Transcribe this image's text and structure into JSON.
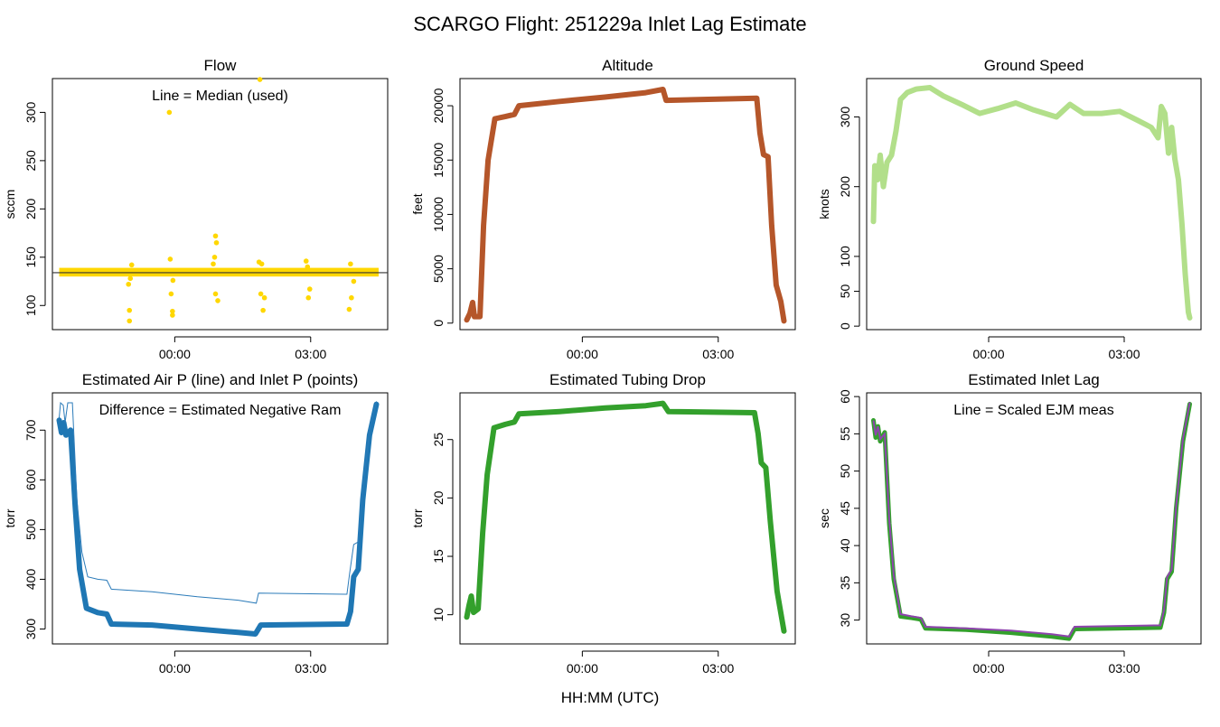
{
  "figure": {
    "title": "SCARGO Flight: 251229a  Inlet Lag Estimate",
    "xlabel": "HH:MM (UTC)"
  },
  "chart_data": [
    {
      "id": "flow",
      "type": "scatter",
      "title": "Flow",
      "ylabel": "sccm",
      "annotation": "Line = Median (used)",
      "color": "#FFD700",
      "xticks": [
        {
          "t": 0,
          "label": "00:00"
        },
        {
          "t": 3,
          "label": "03:00"
        }
      ],
      "yticks": [
        100,
        150,
        200,
        250,
        300
      ],
      "ylim": [
        75,
        335
      ],
      "xlim": [
        -2.7,
        4.7
      ],
      "reference_line": {
        "value": 134,
        "color": "#333333"
      },
      "band": {
        "x0": -2.55,
        "x1": 4.5,
        "low": 130,
        "high": 139
      },
      "outliers": [
        {
          "t": -1.0,
          "v": 84
        },
        {
          "t": -1.0,
          "v": 95
        },
        {
          "t": -1.02,
          "v": 122
        },
        {
          "t": -0.98,
          "v": 128
        },
        {
          "t": -0.95,
          "v": 142
        },
        {
          "t": -0.12,
          "v": 300
        },
        {
          "t": -0.05,
          "v": 90
        },
        {
          "t": -0.05,
          "v": 94
        },
        {
          "t": -0.08,
          "v": 112
        },
        {
          "t": -0.1,
          "v": 148
        },
        {
          "t": -0.04,
          "v": 126
        },
        {
          "t": 0.9,
          "v": 172
        },
        {
          "t": 0.92,
          "v": 165
        },
        {
          "t": 0.88,
          "v": 150
        },
        {
          "t": 0.95,
          "v": 105
        },
        {
          "t": 0.9,
          "v": 112
        },
        {
          "t": 0.85,
          "v": 143
        },
        {
          "t": 1.88,
          "v": 334
        },
        {
          "t": 1.95,
          "v": 95
        },
        {
          "t": 1.9,
          "v": 112
        },
        {
          "t": 1.86,
          "v": 145
        },
        {
          "t": 1.98,
          "v": 108
        },
        {
          "t": 1.92,
          "v": 143
        },
        {
          "t": 2.95,
          "v": 108
        },
        {
          "t": 2.98,
          "v": 117
        },
        {
          "t": 2.9,
          "v": 146
        },
        {
          "t": 2.93,
          "v": 140
        },
        {
          "t": 3.85,
          "v": 96
        },
        {
          "t": 3.9,
          "v": 108
        },
        {
          "t": 3.88,
          "v": 143
        },
        {
          "t": 3.95,
          "v": 125
        }
      ]
    },
    {
      "id": "altitude",
      "type": "line",
      "title": "Altitude",
      "ylabel": "feet",
      "color": "#B5562A",
      "xticks": [
        {
          "t": 0,
          "label": "00:00"
        },
        {
          "t": 3,
          "label": "03:00"
        }
      ],
      "yticks": [
        0,
        5000,
        10000,
        15000,
        20000
      ],
      "ylim": [
        -600,
        22500
      ],
      "xlim": [
        -2.7,
        4.7
      ],
      "series": [
        {
          "t": -2.55,
          "v": 300
        },
        {
          "t": -2.48,
          "v": 900
        },
        {
          "t": -2.42,
          "v": 1900
        },
        {
          "t": -2.38,
          "v": 600
        },
        {
          "t": -2.26,
          "v": 600
        },
        {
          "t": -2.18,
          "v": 9000
        },
        {
          "t": -2.08,
          "v": 15000
        },
        {
          "t": -1.93,
          "v": 18800
        },
        {
          "t": -1.7,
          "v": 19000
        },
        {
          "t": -1.5,
          "v": 19200
        },
        {
          "t": -1.4,
          "v": 20000
        },
        {
          "t": -0.5,
          "v": 20400
        },
        {
          "t": 0.5,
          "v": 20800
        },
        {
          "t": 1.4,
          "v": 21200
        },
        {
          "t": 1.78,
          "v": 21500
        },
        {
          "t": 1.85,
          "v": 20500
        },
        {
          "t": 3.85,
          "v": 20700
        },
        {
          "t": 3.92,
          "v": 17500
        },
        {
          "t": 4.0,
          "v": 15500
        },
        {
          "t": 4.1,
          "v": 15300
        },
        {
          "t": 4.18,
          "v": 9000
        },
        {
          "t": 4.28,
          "v": 3500
        },
        {
          "t": 4.38,
          "v": 2000
        },
        {
          "t": 4.45,
          "v": 200
        }
      ]
    },
    {
      "id": "ground-speed",
      "type": "line",
      "title": "Ground Speed",
      "ylabel": "knots",
      "color": "#B2DF8A",
      "xticks": [
        {
          "t": 0,
          "label": "00:00"
        },
        {
          "t": 3,
          "label": "03:00"
        }
      ],
      "yticks": [
        0,
        50,
        100,
        200,
        300
      ],
      "ylim": [
        -5,
        355
      ],
      "xlim": [
        -2.7,
        4.7
      ],
      "series": [
        {
          "t": -2.55,
          "v": 150
        },
        {
          "t": -2.52,
          "v": 230
        },
        {
          "t": -2.46,
          "v": 210
        },
        {
          "t": -2.4,
          "v": 245
        },
        {
          "t": -2.33,
          "v": 200
        },
        {
          "t": -2.25,
          "v": 235
        },
        {
          "t": -2.15,
          "v": 245
        },
        {
          "t": -2.05,
          "v": 280
        },
        {
          "t": -1.95,
          "v": 325
        },
        {
          "t": -1.8,
          "v": 335
        },
        {
          "t": -1.6,
          "v": 340
        },
        {
          "t": -1.3,
          "v": 342
        },
        {
          "t": -1.0,
          "v": 330
        },
        {
          "t": -0.6,
          "v": 318
        },
        {
          "t": -0.2,
          "v": 305
        },
        {
          "t": 0.2,
          "v": 312
        },
        {
          "t": 0.6,
          "v": 320
        },
        {
          "t": 1.0,
          "v": 310
        },
        {
          "t": 1.5,
          "v": 300
        },
        {
          "t": 1.8,
          "v": 318
        },
        {
          "t": 2.1,
          "v": 305
        },
        {
          "t": 2.5,
          "v": 305
        },
        {
          "t": 2.9,
          "v": 308
        },
        {
          "t": 3.3,
          "v": 295
        },
        {
          "t": 3.6,
          "v": 285
        },
        {
          "t": 3.75,
          "v": 270
        },
        {
          "t": 3.82,
          "v": 315
        },
        {
          "t": 3.9,
          "v": 305
        },
        {
          "t": 3.98,
          "v": 248
        },
        {
          "t": 4.05,
          "v": 285
        },
        {
          "t": 4.12,
          "v": 240
        },
        {
          "t": 4.2,
          "v": 210
        },
        {
          "t": 4.28,
          "v": 145
        },
        {
          "t": 4.35,
          "v": 75
        },
        {
          "t": 4.42,
          "v": 20
        },
        {
          "t": 4.45,
          "v": 12
        }
      ]
    },
    {
      "id": "pressure",
      "type": "line",
      "title": "Estimated Air P (line) and Inlet P (points)",
      "ylabel": "torr",
      "annotation": "Difference = Estimated Negative Ram",
      "xticks": [
        {
          "t": 0,
          "label": "00:00"
        },
        {
          "t": 3,
          "label": "03:00"
        }
      ],
      "yticks": [
        300,
        400,
        500,
        600,
        700
      ],
      "ylim": [
        270,
        775
      ],
      "xlim": [
        -2.7,
        4.7
      ],
      "series": [
        {
          "name": "Estimated Air P",
          "color": "#2B7BB9",
          "points": [
            {
              "t": -2.55,
              "v": 725
            },
            {
              "t": -2.52,
              "v": 755
            },
            {
              "t": -2.46,
              "v": 750
            },
            {
              "t": -2.42,
              "v": 715
            },
            {
              "t": -2.36,
              "v": 755
            },
            {
              "t": -2.26,
              "v": 755
            },
            {
              "t": -2.16,
              "v": 560
            },
            {
              "t": -2.05,
              "v": 455
            },
            {
              "t": -1.92,
              "v": 405
            },
            {
              "t": -1.7,
              "v": 400
            },
            {
              "t": -1.5,
              "v": 398
            },
            {
              "t": -1.4,
              "v": 380
            },
            {
              "t": -0.5,
              "v": 375
            },
            {
              "t": 0.5,
              "v": 365
            },
            {
              "t": 1.4,
              "v": 358
            },
            {
              "t": 1.8,
              "v": 352
            },
            {
              "t": 1.85,
              "v": 372
            },
            {
              "t": 3.8,
              "v": 370
            },
            {
              "t": 3.86,
              "v": 412
            },
            {
              "t": 3.95,
              "v": 470
            },
            {
              "t": 4.05,
              "v": 475
            },
            {
              "t": 4.15,
              "v": 580
            },
            {
              "t": 4.3,
              "v": 700
            },
            {
              "t": 4.45,
              "v": 758
            }
          ]
        },
        {
          "name": "Inlet P",
          "color": "#1F77B4",
          "points": [
            {
              "t": -2.55,
              "v": 720
            },
            {
              "t": -2.5,
              "v": 695
            },
            {
              "t": -2.45,
              "v": 715
            },
            {
              "t": -2.4,
              "v": 690
            },
            {
              "t": -2.3,
              "v": 700
            },
            {
              "t": -2.2,
              "v": 550
            },
            {
              "t": -2.1,
              "v": 420
            },
            {
              "t": -1.95,
              "v": 342
            },
            {
              "t": -1.7,
              "v": 333
            },
            {
              "t": -1.5,
              "v": 330
            },
            {
              "t": -1.4,
              "v": 310
            },
            {
              "t": -0.5,
              "v": 308
            },
            {
              "t": 0.5,
              "v": 300
            },
            {
              "t": 1.4,
              "v": 293
            },
            {
              "t": 1.78,
              "v": 290
            },
            {
              "t": 1.9,
              "v": 308
            },
            {
              "t": 3.8,
              "v": 310
            },
            {
              "t": 3.88,
              "v": 335
            },
            {
              "t": 3.95,
              "v": 405
            },
            {
              "t": 4.05,
              "v": 420
            },
            {
              "t": 4.15,
              "v": 560
            },
            {
              "t": 4.3,
              "v": 690
            },
            {
              "t": 4.45,
              "v": 752
            }
          ]
        }
      ]
    },
    {
      "id": "tubing-drop",
      "type": "line",
      "title": "Estimated Tubing Drop",
      "ylabel": "torr",
      "color": "#33A02C",
      "xticks": [
        {
          "t": 0,
          "label": "00:00"
        },
        {
          "t": 3,
          "label": "03:00"
        }
      ],
      "yticks": [
        10,
        15,
        20,
        25
      ],
      "ylim": [
        7.5,
        29
      ],
      "xlim": [
        -2.7,
        4.7
      ],
      "series": [
        {
          "t": -2.55,
          "v": 9.8
        },
        {
          "t": -2.5,
          "v": 10.8
        },
        {
          "t": -2.45,
          "v": 11.6
        },
        {
          "t": -2.4,
          "v": 10.2
        },
        {
          "t": -2.3,
          "v": 10.5
        },
        {
          "t": -2.2,
          "v": 17
        },
        {
          "t": -2.1,
          "v": 22
        },
        {
          "t": -1.95,
          "v": 26
        },
        {
          "t": -1.7,
          "v": 26.3
        },
        {
          "t": -1.5,
          "v": 26.5
        },
        {
          "t": -1.4,
          "v": 27.2
        },
        {
          "t": -0.5,
          "v": 27.4
        },
        {
          "t": 0.5,
          "v": 27.7
        },
        {
          "t": 1.4,
          "v": 27.9
        },
        {
          "t": 1.78,
          "v": 28.1
        },
        {
          "t": 1.9,
          "v": 27.4
        },
        {
          "t": 3.8,
          "v": 27.3
        },
        {
          "t": 3.88,
          "v": 25.5
        },
        {
          "t": 3.95,
          "v": 23
        },
        {
          "t": 4.05,
          "v": 22.6
        },
        {
          "t": 4.15,
          "v": 18
        },
        {
          "t": 4.3,
          "v": 12
        },
        {
          "t": 4.45,
          "v": 8.6
        }
      ]
    },
    {
      "id": "inlet-lag",
      "type": "line",
      "title": "Estimated Inlet Lag",
      "ylabel": "sec",
      "annotation": "Line = Scaled EJM meas",
      "xticks": [
        {
          "t": 0,
          "label": "00:00"
        },
        {
          "t": 3,
          "label": "03:00"
        }
      ],
      "yticks": [
        30,
        35,
        40,
        45,
        50,
        55,
        60
      ],
      "ylim": [
        26.8,
        60.5
      ],
      "xlim": [
        -2.7,
        4.7
      ],
      "series": [
        {
          "name": "Estimated lag",
          "color": "#33A02C",
          "points": [
            {
              "t": -2.55,
              "v": 56.8
            },
            {
              "t": -2.5,
              "v": 54.5
            },
            {
              "t": -2.45,
              "v": 56
            },
            {
              "t": -2.4,
              "v": 54
            },
            {
              "t": -2.3,
              "v": 55.2
            },
            {
              "t": -2.2,
              "v": 43
            },
            {
              "t": -2.1,
              "v": 35.5
            },
            {
              "t": -1.95,
              "v": 30.5
            },
            {
              "t": -1.7,
              "v": 30.3
            },
            {
              "t": -1.5,
              "v": 30.1
            },
            {
              "t": -1.4,
              "v": 28.9
            },
            {
              "t": -0.5,
              "v": 28.7
            },
            {
              "t": 0.5,
              "v": 28.3
            },
            {
              "t": 1.4,
              "v": 27.8
            },
            {
              "t": 1.78,
              "v": 27.5
            },
            {
              "t": 1.9,
              "v": 28.8
            },
            {
              "t": 3.8,
              "v": 29
            },
            {
              "t": 3.88,
              "v": 31
            },
            {
              "t": 3.95,
              "v": 35.5
            },
            {
              "t": 4.05,
              "v": 36.5
            },
            {
              "t": 4.15,
              "v": 45
            },
            {
              "t": 4.3,
              "v": 54
            },
            {
              "t": 4.45,
              "v": 59
            }
          ]
        },
        {
          "name": "Scaled EJM meas",
          "color": "#8E44AD",
          "points": [
            {
              "t": -2.55,
              "v": 56.8
            },
            {
              "t": -2.5,
              "v": 54.8
            },
            {
              "t": -2.45,
              "v": 56
            },
            {
              "t": -2.4,
              "v": 54.3
            },
            {
              "t": -2.3,
              "v": 55
            },
            {
              "t": -2.2,
              "v": 43.5
            },
            {
              "t": -2.1,
              "v": 36
            },
            {
              "t": -1.95,
              "v": 30.8
            },
            {
              "t": -1.7,
              "v": 30.5
            },
            {
              "t": -1.5,
              "v": 30.3
            },
            {
              "t": -1.4,
              "v": 29.1
            },
            {
              "t": -0.5,
              "v": 28.9
            },
            {
              "t": 0.5,
              "v": 28.6
            },
            {
              "t": 1.4,
              "v": 28.1
            },
            {
              "t": 1.78,
              "v": 27.8
            },
            {
              "t": 1.9,
              "v": 29.1
            },
            {
              "t": 3.8,
              "v": 29.3
            },
            {
              "t": 3.88,
              "v": 31.3
            },
            {
              "t": 3.95,
              "v": 35.8
            },
            {
              "t": 4.05,
              "v": 36.8
            },
            {
              "t": 4.15,
              "v": 45.3
            },
            {
              "t": 4.3,
              "v": 54.3
            },
            {
              "t": 4.45,
              "v": 59.2
            }
          ]
        }
      ]
    }
  ]
}
